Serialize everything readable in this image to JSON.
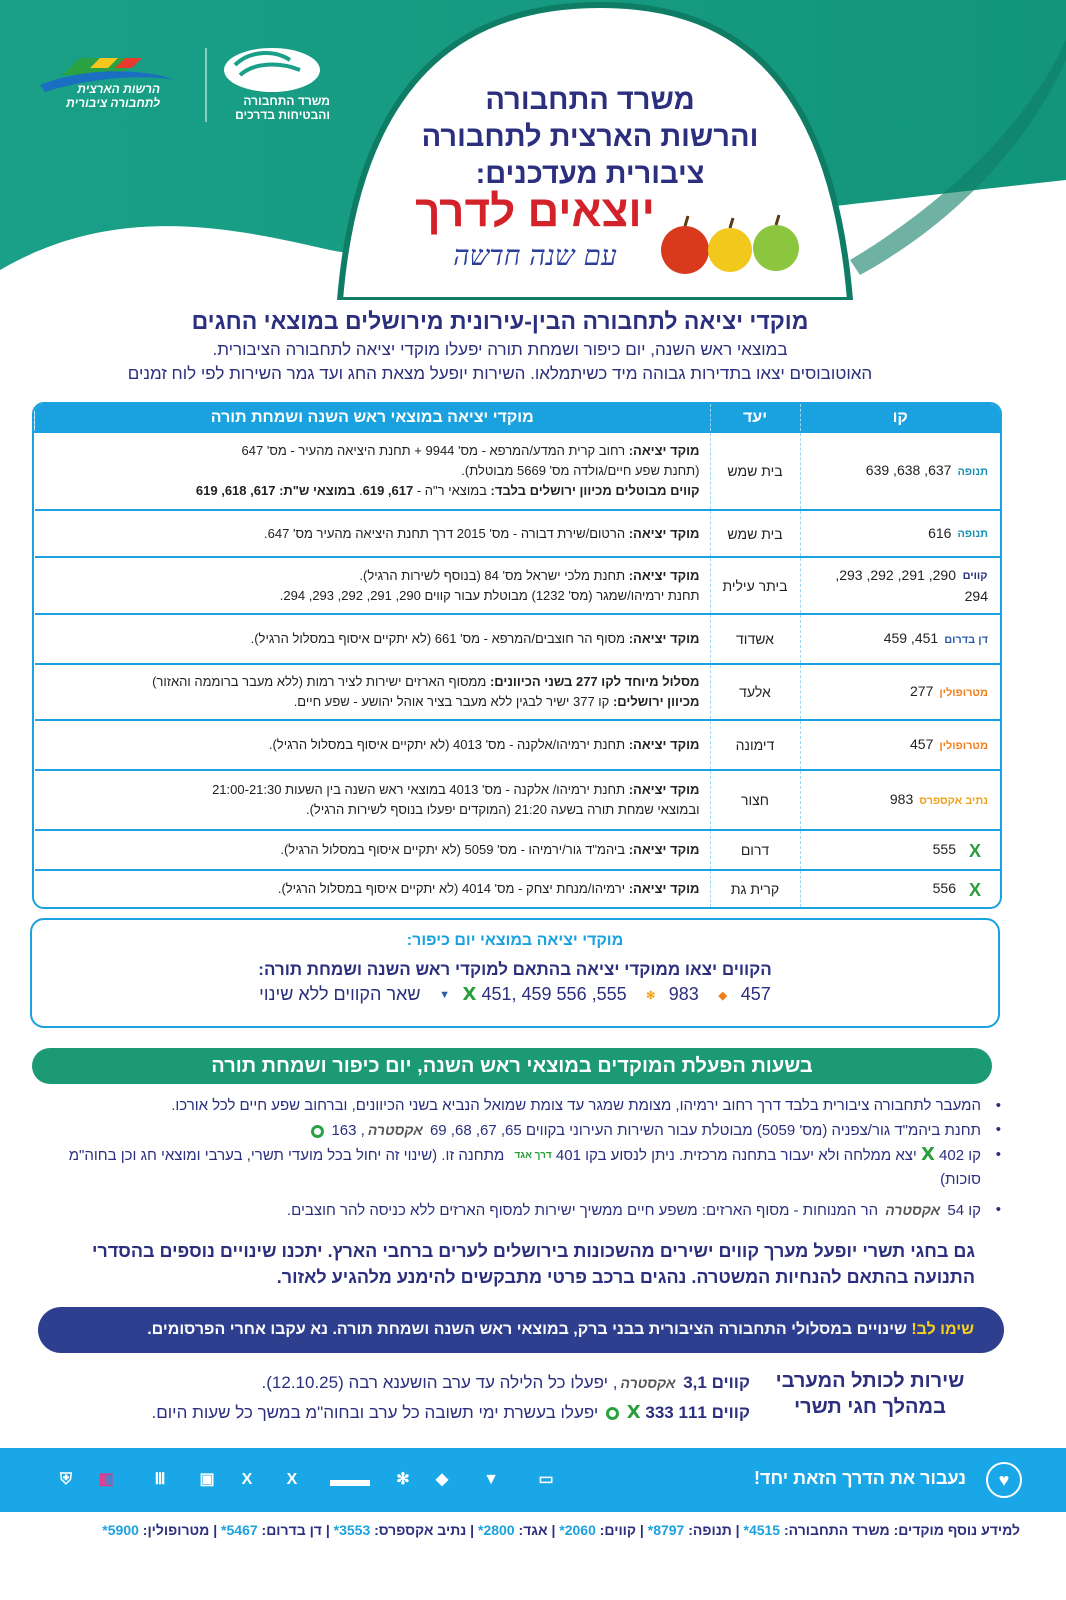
{
  "colors": {
    "green": "#1b9a73",
    "navy": "#2b2f7e",
    "table_blue": "#1aa1e0",
    "pill": "#2e3f8f",
    "footer": "#19a7e8",
    "highlight": "#f7d21c"
  },
  "header": {
    "logo_ministry": "משרד התחבורה והבטיחות בדרכים",
    "logo_authority": "הרשות הארצית לתחבורה ציבורית",
    "title_lines": [
      "משרד התחבורה",
      "והרשות הארצית לתחבורה",
      "ציבורית מעדכנים:"
    ],
    "slogan": "יוצאים לדרך",
    "slogan_script": "עם שנה חדשה"
  },
  "intro": {
    "headline": "מוקדי יציאה לתחבורה הבין-עירונית מירושלים במוצאי החגים",
    "line1": "במוצאי ראש השנה, יום כיפור ושמחת תורה יפעלו מוקדי יציאה לתחבורה הציבורית.",
    "line2": "האוטובוסים יצאו בתדירות גבוהה מיד כשיתמלאו. השירות יופעל מצאת החג ועד גמר השירות לפי לוח זמנים"
  },
  "table": {
    "headers": {
      "line": "קו",
      "dest": "יעד",
      "desc": "מוקדי יציאה במוצאי ראש השנה ושמחת תורה"
    },
    "rows": [
      {
        "operator": "תנופה",
        "icon": "tnufa-logo-icon",
        "lines": "637, 638, 639",
        "dest": "בית שמש",
        "desc": [
          [
            [
              "b",
              "מוקד יציאה:"
            ],
            [
              "t",
              " רחוב קרית המדע/המרפא - מס' 9944 + תחנת היציאה מהעיר - מס' 647"
            ]
          ],
          [
            [
              "t",
              "(תחנת שפע חיים/גולדה מס' 5669 מבוטלת)."
            ]
          ],
          [
            [
              "b",
              "קווים מבוטלים מכיוון ירושלים בלבד:"
            ],
            [
              "t",
              " במוצאי ר\"ה - "
            ],
            [
              "b",
              "617, 619"
            ],
            [
              "t",
              ". "
            ],
            [
              "b",
              "במוצאי ש\"ת: 617, 618, 619"
            ]
          ]
        ]
      },
      {
        "operator": "תנופה",
        "icon": "tnufa-logo-icon",
        "lines": "616",
        "dest": "בית שמש",
        "desc": [
          [
            [
              "b",
              "מוקד יציאה:"
            ],
            [
              "t",
              " הרטום/שירת דבורה - מס' 2015 דרך תחנת היציאה מהעיר מס' 647."
            ]
          ]
        ]
      },
      {
        "operator": "קווים",
        "icon": "kavim-logo-icon",
        "lines": "290, 291, 292, 293, 294",
        "dest": "ביתר עילית",
        "desc": [
          [
            [
              "b",
              "מוקד יציאה:"
            ],
            [
              "t",
              " תחנת מלכי ישראל מס' 84 (בנוסף לשירות הרגיל)."
            ]
          ],
          [
            [
              "t",
              "תחנת ירמיהו/שמגר (מס' 1232) מבוטלת עבור קווים 290, 291, 292, 293, 294."
            ]
          ]
        ]
      },
      {
        "operator": "דן בדרום",
        "icon": "dan-badarom-logo-icon",
        "lines": "451, 459",
        "dest": "אשדוד",
        "desc": [
          [
            [
              "b",
              "מוקד יציאה:"
            ],
            [
              "t",
              " מסוף הר חוצבים/המרפא - מס' 661  (לא יתקיים איסוף במסלול הרגיל)."
            ]
          ]
        ]
      },
      {
        "operator": "מטרופולין",
        "icon": "metropoline-logo-icon",
        "lines": "277",
        "dest": "אלעד",
        "desc": [
          [
            [
              "b",
              "מסלול מיוחד לקו 277 בשני הכיוונים:"
            ],
            [
              "t",
              " ממסוף הארזים ישירות לציר רמות (ללא מעבר ברוממה והאזור)"
            ]
          ],
          [
            [
              "b",
              "מכיוון ירושלים:"
            ],
            [
              "t",
              " קו 377 ישיר לבגין ללא מעבר בציר אוהל יהושע - שפע חיים."
            ]
          ]
        ]
      },
      {
        "operator": "מטרופולין",
        "icon": "metropoline-logo-icon",
        "lines": "457",
        "dest": "דימונה",
        "desc": [
          [
            [
              "b",
              "מוקד יציאה:"
            ],
            [
              "t",
              " תחנת ירמיהו/אלקנה - מס' 4013 (לא יתקיים איסוף במסלול הרגיל)."
            ]
          ]
        ]
      },
      {
        "operator": "נתיב אקספרס",
        "icon": "nateev-express-logo-icon",
        "lines": "983",
        "dest": "חצור",
        "desc": [
          [
            [
              "b",
              "מוקד יציאה:"
            ],
            [
              "t",
              " תחנת ירמיהו/ אלקנה - מס' 4013 במוצאי ראש השנה בין השעות 21:00-21:30"
            ]
          ],
          [
            [
              "t",
              "ובמוצאי שמחת תורה בשעה 21:20 (המוקדים יפעלו בנוסף לשירות הרגיל)."
            ]
          ]
        ]
      },
      {
        "operator": "אקסטרה",
        "icon": "x-logo-icon",
        "lines": "555",
        "dest": "דרום",
        "desc": [
          [
            [
              "b",
              "מוקד יציאה:"
            ],
            [
              "t",
              " ביהמ\"ד גור/ירמיהו - מס' 5059 (לא יתקיים איסוף במסלול הרגיל)."
            ]
          ]
        ]
      },
      {
        "operator": "אקסטרה",
        "icon": "x-logo-icon",
        "lines": "556",
        "dest": "קרית גת",
        "desc": [
          [
            [
              "b",
              "מוקד יציאה:"
            ],
            [
              "t",
              " ירמיהו/מנחת יצחק - מס'  4014 (לא יתקיים איסוף במסלול הרגיל)."
            ]
          ]
        ]
      }
    ]
  },
  "yom_kippur": {
    "title": "מוקדי יציאה במוצאי יום כיפור:",
    "subtitle": "הקווים יצאו ממוקדי יציאה בהתאם למוקדי ראש השנה ושמחת תורה:",
    "lines": [
      "457",
      "983",
      "555, 556",
      "451, 459"
    ],
    "rest": "שאר הקווים ללא שינוי"
  },
  "hours": {
    "title": "בשעות הפעלת המוקדים במוצאי ראש השנה, יום כיפור ושמחת תורה",
    "b1": "המעבר לתחבורה ציבורית בלבד דרך רחוב ירמיהו, מצומת שמגר עד צומת שמואל הנביא בשני הכיוונים, וברחוב שפע חיים לכל אורכו.",
    "b2a": "תחנת ביהמ\"ד גור/צפניה (מס' 5059) מבוטלת עבור השירות העירוני בקווים 65, 67, 68, 69",
    "b2b": ", 163",
    "b3a": "קו 402",
    "b3b": "יצא ממלחה ולא יעבור בתחנה מרכזית. ניתן לנסוע בקו 401",
    "b3c": "מתחנה זו. (שינוי זה יחול בכל מועדי תשרי, בערבי ומוצאי חג וכן בחוה\"מ סוכות)",
    "b4a": "קו 54",
    "b4b": "הר המנוחות - מסוף הארזים: משפע חיים ממשיך ישירות למסוף הארזים ללא כניסה להר חוצבים.",
    "extra_logo": "אקסטרה",
    "egged_logo": "דרך אגד"
  },
  "notice": "גם בחגי תשרי יופעל מערך קווים ישירים מהשכונות בירושלים לערים ברחבי הארץ. יתכנו שינויים נוספים בהסדרי התנועה בהתאם להנחיות המשטרה. נהגים ברכב פרטי מתבקשים להימנע מלהגיע לאזור.",
  "attention": {
    "label": "שימו לב!",
    "text": " שינויים במסלולי התחבורה הציבורית בבני ברק, במוצאי ראש השנה ושמחת תורה. נא עקבו אחרי הפרסומים."
  },
  "western_wall": {
    "title": "שירות לכותל המערבי",
    "subtitle": "במהלך חגי תשרי",
    "l1a": "קווים 3,1",
    "l1b": ", יפעלו כל הלילה עד ערב הושענא רבה (12.10.25).",
    "l2a": "קווים 111",
    "l2b": "333",
    "l2c": "יפעלו בעשרת ימי תשובה כל ערב ובחוה\"מ במשך כל שעות היום."
  },
  "footer": {
    "slogan": "נעבור את הדרך הזאת יחד!"
  },
  "info": {
    "label": "למידע נוסף מוקדים:",
    "items": [
      {
        "name": "משרד התחבורה:",
        "num": "*4515"
      },
      {
        "name": "תנופה:",
        "num": "*8797"
      },
      {
        "name": "קווים:",
        "num": "*2060"
      },
      {
        "name": "אגד:",
        "num": "*2800"
      },
      {
        "name": "נתיב אקספרס:",
        "num": "*3553"
      },
      {
        "name": "דן בדרום:",
        "num": "*5467"
      },
      {
        "name": "מטרופולין:",
        "num": "*5900"
      }
    ]
  }
}
